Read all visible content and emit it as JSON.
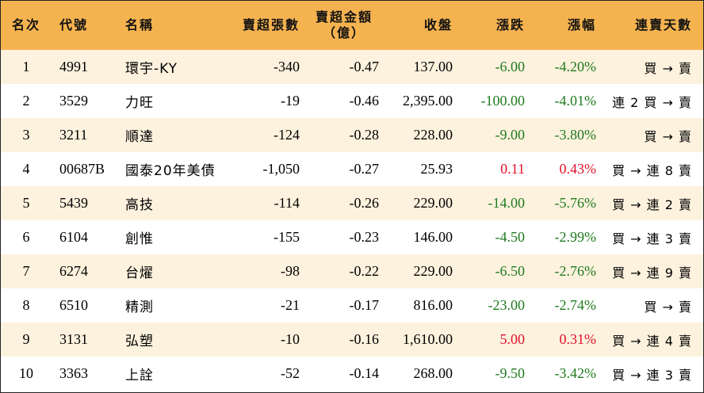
{
  "colors": {
    "header_bg": "#f5b350",
    "odd_row_bg": "#fdf2de",
    "down": "#1f7a1f",
    "up": "#e0102a"
  },
  "headers": {
    "rank": "名次",
    "code": "代號",
    "name": "名稱",
    "sell_lots": "賣超張數",
    "sell_amount_line1": "賣超金額",
    "sell_amount_line2": "（億）",
    "close": "收盤",
    "change": "漲跌",
    "pct": "漲幅",
    "days": "連賣天數"
  },
  "rows": [
    {
      "rank": "1",
      "code": "4991",
      "name": "環宇-KY",
      "sell_lots": "-340",
      "sell_amount": "-0.47",
      "close": "137.00",
      "change": "-6.00",
      "pct": "-4.20%",
      "days": "買 → 賣",
      "dir": "neg"
    },
    {
      "rank": "2",
      "code": "3529",
      "name": "力旺",
      "sell_lots": "-19",
      "sell_amount": "-0.46",
      "close": "2,395.00",
      "change": "-100.00",
      "pct": "-4.01%",
      "days": "連 2 買 → 賣",
      "dir": "neg"
    },
    {
      "rank": "3",
      "code": "3211",
      "name": "順達",
      "sell_lots": "-124",
      "sell_amount": "-0.28",
      "close": "228.00",
      "change": "-9.00",
      "pct": "-3.80%",
      "days": "買 → 賣",
      "dir": "neg"
    },
    {
      "rank": "4",
      "code": "00687B",
      "name": "國泰20年美債",
      "sell_lots": "-1,050",
      "sell_amount": "-0.27",
      "close": "25.93",
      "change": "0.11",
      "pct": "0.43%",
      "days": "買 → 連 8 賣",
      "dir": "pos"
    },
    {
      "rank": "5",
      "code": "5439",
      "name": "高技",
      "sell_lots": "-114",
      "sell_amount": "-0.26",
      "close": "229.00",
      "change": "-14.00",
      "pct": "-5.76%",
      "days": "買 → 連 2 賣",
      "dir": "neg"
    },
    {
      "rank": "6",
      "code": "6104",
      "name": "創惟",
      "sell_lots": "-155",
      "sell_amount": "-0.23",
      "close": "146.00",
      "change": "-4.50",
      "pct": "-2.99%",
      "days": "買 → 連 3 賣",
      "dir": "neg"
    },
    {
      "rank": "7",
      "code": "6274",
      "name": "台燿",
      "sell_lots": "-98",
      "sell_amount": "-0.22",
      "close": "229.00",
      "change": "-6.50",
      "pct": "-2.76%",
      "days": "買 → 連 9 賣",
      "dir": "neg"
    },
    {
      "rank": "8",
      "code": "6510",
      "name": "精測",
      "sell_lots": "-21",
      "sell_amount": "-0.17",
      "close": "816.00",
      "change": "-23.00",
      "pct": "-2.74%",
      "days": "買 → 賣",
      "dir": "neg"
    },
    {
      "rank": "9",
      "code": "3131",
      "name": "弘塑",
      "sell_lots": "-10",
      "sell_amount": "-0.16",
      "close": "1,610.00",
      "change": "5.00",
      "pct": "0.31%",
      "days": "買 → 連 4 賣",
      "dir": "pos"
    },
    {
      "rank": "10",
      "code": "3363",
      "name": "上詮",
      "sell_lots": "-52",
      "sell_amount": "-0.14",
      "close": "268.00",
      "change": "-9.50",
      "pct": "-3.42%",
      "days": "買 → 連 3 賣",
      "dir": "neg"
    }
  ]
}
